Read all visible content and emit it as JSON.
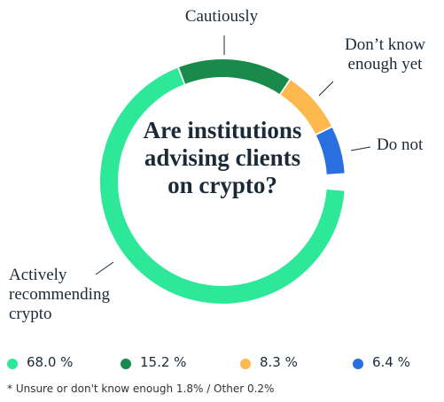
{
  "chart_data": {
    "type": "donut",
    "title": "Are institutions advising clients on crypto?",
    "categories": [
      "Actively recommending crypto",
      "Cautiously",
      "Don’t know enough yet",
      "Do not"
    ],
    "values": [
      68.0,
      15.2,
      8.3,
      6.4
    ],
    "value_labels": [
      "68.0 %",
      "15.2 %",
      "8.3 %",
      "6.4 %"
    ],
    "colors": [
      "#2ee89a",
      "#1a8a4a",
      "#fdb94e",
      "#2a6fe0"
    ],
    "footnote": "* Unsure or don't know enough 1.8%  /  Other 0.2%"
  }
}
